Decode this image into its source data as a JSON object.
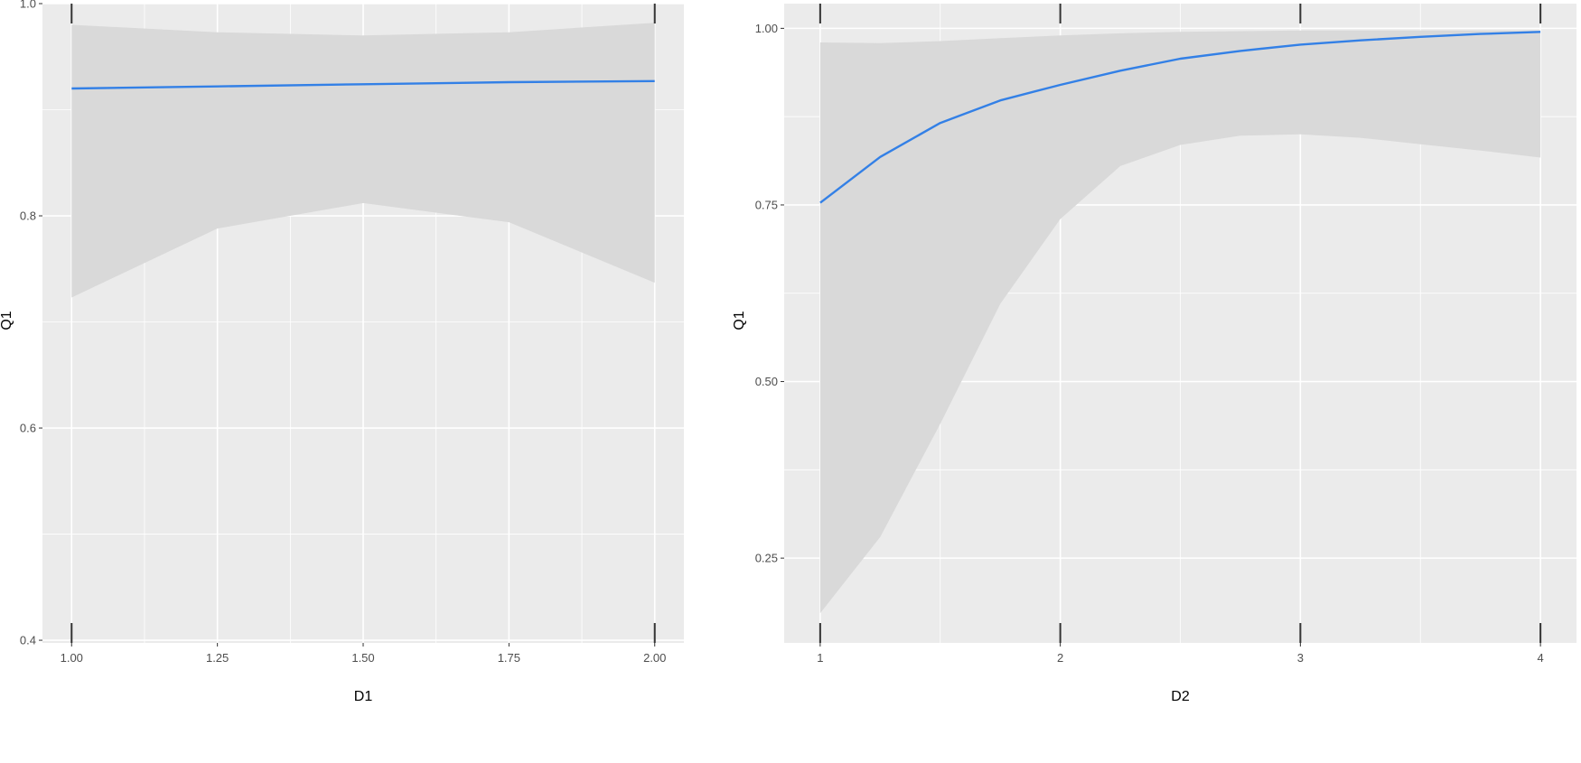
{
  "chart_data": [
    {
      "type": "line",
      "xlabel": "D1",
      "ylabel": "Q1",
      "xlim": [
        0.95,
        2.05
      ],
      "ylim": [
        0.3975,
        1.0
      ],
      "x_ticks": [
        1.0,
        1.25,
        1.5,
        1.75,
        2.0
      ],
      "x_tick_labels": [
        "1.00",
        "1.25",
        "1.50",
        "1.75",
        "2.00"
      ],
      "y_ticks": [
        0.4,
        0.6,
        0.8,
        1.0
      ],
      "y_tick_labels": [
        "0.4",
        "0.6",
        "0.8",
        "1.0"
      ],
      "grid": true,
      "rug_x": [
        1.0,
        2.0
      ],
      "series": [
        {
          "x": [
            1.0,
            1.25,
            1.5,
            1.75,
            2.0
          ],
          "y": [
            0.92,
            0.922,
            0.924,
            0.926,
            0.927
          ],
          "ymin": [
            0.723,
            0.788,
            0.812,
            0.794,
            0.737
          ],
          "ymax": [
            0.98,
            0.973,
            0.97,
            0.973,
            0.982
          ]
        }
      ],
      "colors": {
        "line": "#3380e6",
        "ribbon": "#d9d9d9",
        "panel": "#ebebeb",
        "grid": "#ffffff"
      }
    },
    {
      "type": "line",
      "xlabel": "D2",
      "ylabel": "Q1",
      "xlim": [
        0.85,
        4.15
      ],
      "ylim": [
        0.13,
        1.035
      ],
      "x_ticks": [
        1,
        2,
        3,
        4
      ],
      "x_tick_labels": [
        "1",
        "2",
        "3",
        "4"
      ],
      "y_ticks": [
        0.25,
        0.5,
        0.75,
        1.0
      ],
      "y_tick_labels": [
        "0.25",
        "0.50",
        "0.75",
        "1.00"
      ],
      "grid": true,
      "rug_x": [
        1,
        2,
        3,
        4
      ],
      "series": [
        {
          "x": [
            1.0,
            1.25,
            1.5,
            1.75,
            2.0,
            2.25,
            2.5,
            2.75,
            3.0,
            3.25,
            3.5,
            3.75,
            4.0
          ],
          "y": [
            0.753,
            0.818,
            0.866,
            0.898,
            0.92,
            0.94,
            0.957,
            0.968,
            0.977,
            0.983,
            0.988,
            0.992,
            0.995
          ],
          "ymin": [
            0.172,
            0.28,
            0.44,
            0.61,
            0.73,
            0.805,
            0.835,
            0.848,
            0.85,
            0.845,
            0.836,
            0.827,
            0.817
          ],
          "ymax": [
            0.98,
            0.979,
            0.982,
            0.986,
            0.99,
            0.993,
            0.995,
            0.996,
            0.997,
            0.997,
            0.997,
            0.997,
            0.997
          ]
        }
      ],
      "colors": {
        "line": "#3380e6",
        "ribbon": "#d9d9d9",
        "panel": "#ebebeb",
        "grid": "#ffffff"
      }
    }
  ]
}
